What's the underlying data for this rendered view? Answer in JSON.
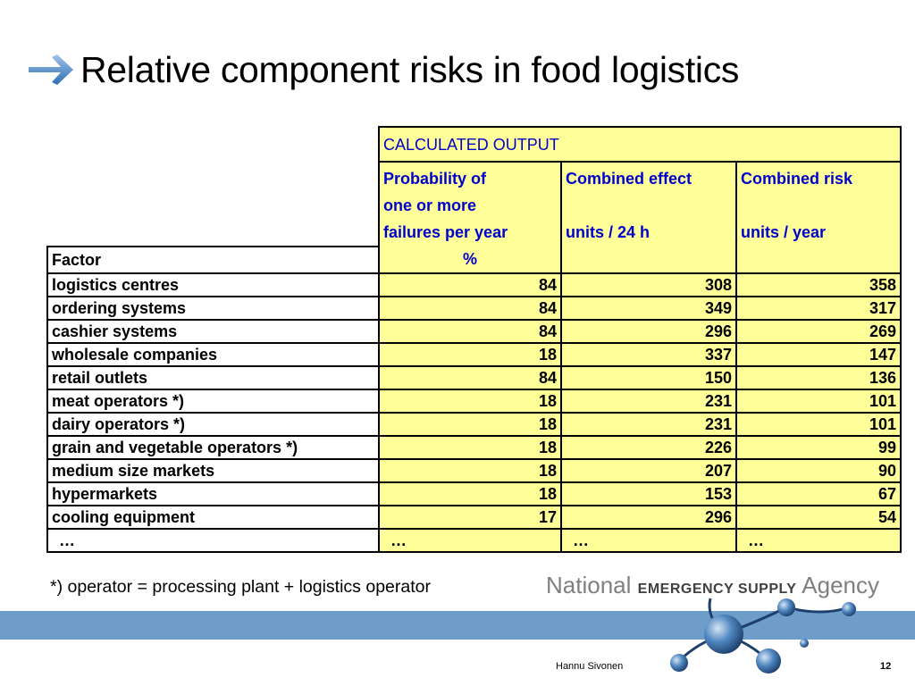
{
  "slide": {
    "title": "Relative component risks in food logistics",
    "footnote": "*) operator = processing plant + logistics operator",
    "author": "Hannu Sivonen",
    "page_number": "12",
    "logo": {
      "part1": "National",
      "part2": "EMERGENCY SUPPLY",
      "part3": "Agency"
    }
  },
  "table": {
    "group_header": "CALCULATED OUTPUT",
    "factor_header": "Factor",
    "col1": {
      "line1": "Probability of",
      "line2": "one or more",
      "line3": "failures per year",
      "line4": "%"
    },
    "col2": {
      "line1": "Combined effect",
      "line2": "units / 24 h"
    },
    "col3": {
      "line1": "Combined risk",
      "line2": "units / year"
    },
    "rows": [
      {
        "factor": "logistics centres",
        "probability": "84",
        "effect": "308",
        "risk": "358"
      },
      {
        "factor": "ordering systems",
        "probability": "84",
        "effect": "349",
        "risk": "317"
      },
      {
        "factor": "cashier systems",
        "probability": "84",
        "effect": "296",
        "risk": "269"
      },
      {
        "factor": "wholesale companies",
        "probability": "18",
        "effect": "337",
        "risk": "147"
      },
      {
        "factor": "retail outlets",
        "probability": "84",
        "effect": "150",
        "risk": "136"
      },
      {
        "factor": "meat operators *)",
        "probability": "18",
        "effect": "231",
        "risk": "101"
      },
      {
        "factor": "dairy operators *)",
        "probability": "18",
        "effect": "231",
        "risk": "101"
      },
      {
        "factor": "grain and vegetable operators *)",
        "probability": "18",
        "effect": "226",
        "risk": "99"
      },
      {
        "factor": "medium size markets",
        "probability": "18",
        "effect": "207",
        "risk": "90"
      },
      {
        "factor": "hypermarkets",
        "probability": "18",
        "effect": "153",
        "risk": "67"
      },
      {
        "factor": "cooling equipment",
        "probability": "17",
        "effect": "296",
        "risk": "54"
      },
      {
        "factor": "…",
        "probability": "…",
        "effect": "…",
        "risk": "…"
      }
    ]
  },
  "colors": {
    "accent_blue": "#0000cc",
    "cell_yellow": "#ffff99",
    "band_blue": "#6f9dca"
  }
}
